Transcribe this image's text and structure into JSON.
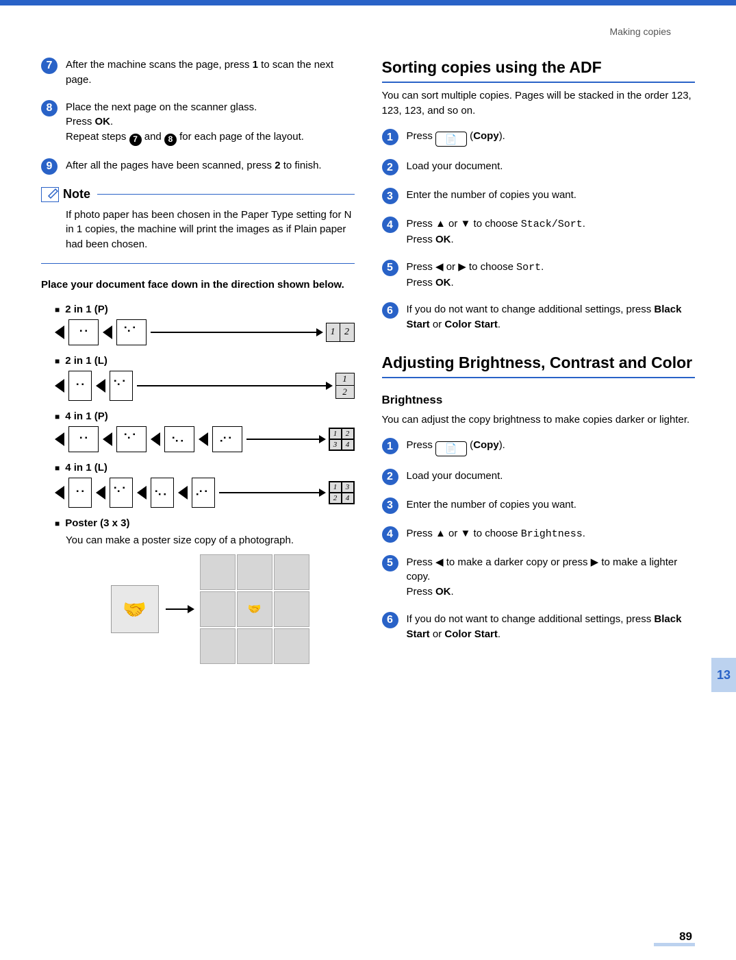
{
  "header": {
    "section": "Making copies"
  },
  "left": {
    "steps": [
      {
        "n": "7",
        "html": "After the machine scans the page, press <b>1</b> to scan the next page."
      },
      {
        "n": "8",
        "html": "Place the next page on the scanner glass.<br>Press <b>OK</b>.<br>Repeat steps <span class='inline-dot'>7</span> and <span class='inline-dot'>8</span> for each page of the layout."
      },
      {
        "n": "9",
        "html": "After all the pages have been scanned, press <b>2</b> to finish."
      }
    ],
    "note_label": "Note",
    "note_body": "If photo paper has been chosen in the Paper Type setting for N in 1 copies, the machine will print the images as if Plain paper had been chosen.",
    "place_text": "Place your document face down in the direction shown below.",
    "layouts": [
      {
        "label": "2 in 1 (P)",
        "orient": "land",
        "cells": 2,
        "result": "2x1"
      },
      {
        "label": "2 in 1 (L)",
        "orient": "port",
        "cells": 2,
        "result": "1x2"
      },
      {
        "label": "4 in 1 (P)",
        "orient": "land",
        "cells": 4,
        "result": "2x2r"
      },
      {
        "label": "4 in 1 (L)",
        "orient": "port",
        "cells": 4,
        "result": "2x2c"
      }
    ],
    "poster_label": "Poster (3 x 3)",
    "poster_text": "You can make a poster size copy of a photograph."
  },
  "right": {
    "sort_title": "Sorting copies using the ADF",
    "sort_intro": "You can sort multiple copies. Pages will be stacked in the order 123, 123, 123, and so on.",
    "sort_steps": [
      {
        "n": "1",
        "html": "Press <span class='key-btn'>📄</span> (<b>Copy</b>)."
      },
      {
        "n": "2",
        "html": "Load your document."
      },
      {
        "n": "3",
        "html": "Enter the number of copies you want."
      },
      {
        "n": "4",
        "html": "Press ▲ or ▼ to choose <span class='mono'>Stack/Sort</span>.<br>Press <b>OK</b>."
      },
      {
        "n": "5",
        "html": "Press ◀ or ▶ to choose <span class='mono'>Sort</span>.<br>Press <b>OK</b>."
      },
      {
        "n": "6",
        "html": "If you do not want to change additional settings, press <b>Black Start</b> or <b>Color Start</b>."
      }
    ],
    "adj_title": "Adjusting Brightness, Contrast and Color",
    "bright_label": "Brightness",
    "bright_intro": "You can adjust the copy brightness to make copies darker or lighter.",
    "bright_steps": [
      {
        "n": "1",
        "html": "Press <span class='key-btn'>📄</span> (<b>Copy</b>)."
      },
      {
        "n": "2",
        "html": "Load your document."
      },
      {
        "n": "3",
        "html": "Enter the number of copies you want."
      },
      {
        "n": "4",
        "html": "Press ▲ or ▼ to choose <span class='mono'>Brightness</span>."
      },
      {
        "n": "5",
        "html": "Press ◀ to make a darker copy or press ▶ to make a lighter copy.<br>Press <b>OK</b>."
      },
      {
        "n": "6",
        "html": "If you do not want to change additional settings, press <b>Black Start</b> or <b>Color Start</b>."
      }
    ]
  },
  "chapter_tab": "13",
  "page_number": "89"
}
